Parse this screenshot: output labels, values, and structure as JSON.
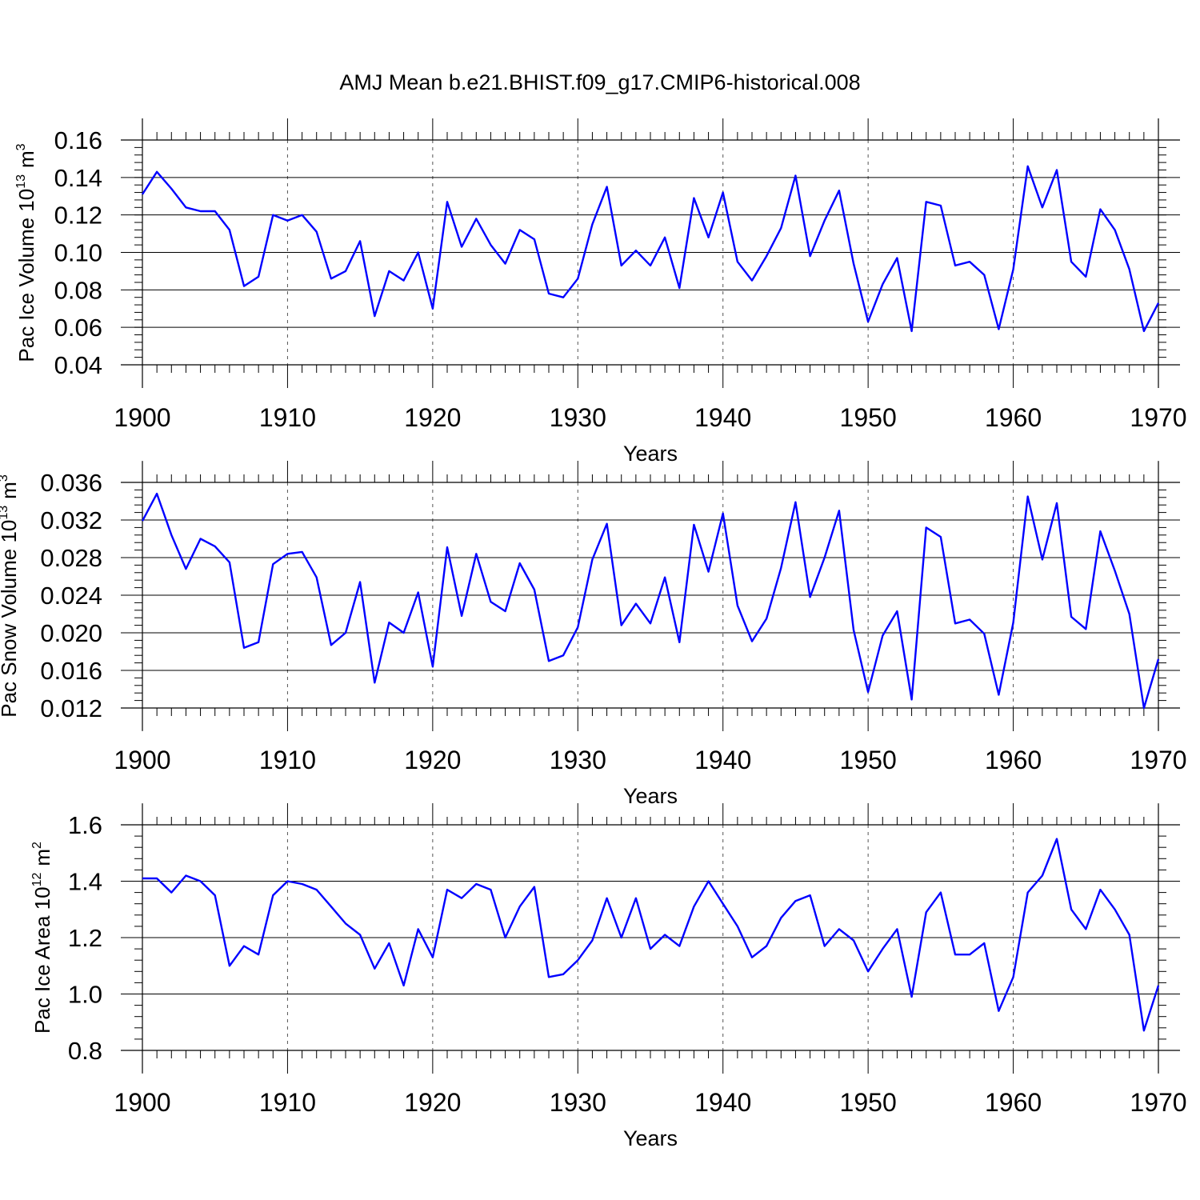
{
  "figure_title": "AMJ Mean b.e21.BHIST.f09_g17.CMIP6-historical.008",
  "chart_data": [
    {
      "type": "line",
      "title": "AMJ Mean b.e21.BHIST.f09_g17.CMIP6-historical.008",
      "xlabel": "Years",
      "ylabel": "Pac Ice Volume 10",
      "ylabel_exp": "13",
      "ylabel_unit": "m",
      "ylabel_unit_exp": "3",
      "xlim": [
        1900,
        1970
      ],
      "ylim": [
        0.04,
        0.16
      ],
      "xticks": [
        1900,
        1910,
        1920,
        1930,
        1940,
        1950,
        1960,
        1970
      ],
      "xtick_labels": [
        "1900",
        "1910",
        "1920",
        "1930",
        "1940",
        "1950",
        "1960",
        "1970"
      ],
      "yticks": [
        0.04,
        0.06,
        0.08,
        0.1,
        0.12,
        0.14,
        0.16
      ],
      "ytick_labels": [
        "0.04",
        "0.06",
        "0.08",
        "0.10",
        "0.12",
        "0.14",
        "0.16"
      ],
      "grid": "vertical-dashed-at-major",
      "line_color": "#0000ff",
      "x_start": 1900,
      "values": [
        0.131,
        0.143,
        0.134,
        0.124,
        0.122,
        0.122,
        0.112,
        0.082,
        0.087,
        0.12,
        0.117,
        0.12,
        0.111,
        0.086,
        0.09,
        0.106,
        0.066,
        0.09,
        0.085,
        0.1,
        0.07,
        0.127,
        0.103,
        0.118,
        0.104,
        0.094,
        0.112,
        0.107,
        0.078,
        0.076,
        0.086,
        0.115,
        0.135,
        0.093,
        0.101,
        0.093,
        0.108,
        0.081,
        0.129,
        0.108,
        0.132,
        0.095,
        0.085,
        0.098,
        0.113,
        0.141,
        0.098,
        0.117,
        0.133,
        0.094,
        0.063,
        0.083,
        0.097,
        0.058,
        0.127,
        0.125,
        0.093,
        0.095,
        0.088,
        0.059,
        0.091,
        0.146,
        0.124,
        0.144,
        0.095,
        0.087,
        0.123,
        0.112,
        0.091,
        0.058,
        0.073
      ]
    },
    {
      "type": "line",
      "xlabel": "Years",
      "ylabel": "Pac Snow Volume 10",
      "ylabel_exp": "13",
      "ylabel_unit": "m",
      "ylabel_unit_exp": "3",
      "xlim": [
        1900,
        1970
      ],
      "ylim": [
        0.012,
        0.036
      ],
      "xticks": [
        1900,
        1910,
        1920,
        1930,
        1940,
        1950,
        1960,
        1970
      ],
      "xtick_labels": [
        "1900",
        "1910",
        "1920",
        "1930",
        "1940",
        "1950",
        "1960",
        "1970"
      ],
      "yticks": [
        0.012,
        0.016,
        0.02,
        0.024,
        0.028,
        0.032,
        0.036
      ],
      "ytick_labels": [
        "0.012",
        "0.016",
        "0.020",
        "0.024",
        "0.028",
        "0.032",
        "0.036"
      ],
      "grid": "vertical-dashed-at-major",
      "line_color": "#0000ff",
      "x_start": 1900,
      "values": [
        0.0319,
        0.0348,
        0.0304,
        0.0268,
        0.03,
        0.0292,
        0.0275,
        0.0184,
        0.019,
        0.0273,
        0.0284,
        0.0286,
        0.0259,
        0.0187,
        0.02,
        0.0254,
        0.0147,
        0.0211,
        0.02,
        0.0243,
        0.0164,
        0.0291,
        0.0218,
        0.0284,
        0.0233,
        0.0223,
        0.0274,
        0.0246,
        0.017,
        0.0176,
        0.0206,
        0.0278,
        0.0316,
        0.0208,
        0.0231,
        0.021,
        0.0259,
        0.019,
        0.0315,
        0.0265,
        0.0327,
        0.0229,
        0.0191,
        0.0215,
        0.0269,
        0.0339,
        0.0238,
        0.028,
        0.033,
        0.0203,
        0.0137,
        0.0197,
        0.0223,
        0.0129,
        0.0312,
        0.0302,
        0.021,
        0.0214,
        0.0199,
        0.0134,
        0.0211,
        0.0345,
        0.0278,
        0.0338,
        0.0217,
        0.0204,
        0.0308,
        0.0266,
        0.022,
        0.012,
        0.0172
      ]
    },
    {
      "type": "line",
      "xlabel": "Years",
      "ylabel": "Pac Ice Area 10",
      "ylabel_exp": "12",
      "ylabel_unit": "m",
      "ylabel_unit_exp": "2",
      "xlim": [
        1900,
        1970
      ],
      "ylim": [
        0.8,
        1.6
      ],
      "xticks": [
        1900,
        1910,
        1920,
        1930,
        1940,
        1950,
        1960,
        1970
      ],
      "xtick_labels": [
        "1900",
        "1910",
        "1920",
        "1930",
        "1940",
        "1950",
        "1960",
        "1970"
      ],
      "yticks": [
        0.8,
        1.0,
        1.2,
        1.4,
        1.6
      ],
      "ytick_labels": [
        "0.8",
        "1.0",
        "1.2",
        "1.4",
        "1.6"
      ],
      "grid": "vertical-dashed-at-major",
      "line_color": "#0000ff",
      "x_start": 1900,
      "values": [
        1.41,
        1.41,
        1.36,
        1.42,
        1.4,
        1.35,
        1.1,
        1.17,
        1.14,
        1.35,
        1.4,
        1.39,
        1.37,
        1.31,
        1.25,
        1.21,
        1.09,
        1.18,
        1.03,
        1.23,
        1.13,
        1.37,
        1.34,
        1.39,
        1.37,
        1.2,
        1.31,
        1.38,
        1.06,
        1.07,
        1.12,
        1.19,
        1.34,
        1.2,
        1.34,
        1.16,
        1.21,
        1.17,
        1.31,
        1.4,
        1.32,
        1.24,
        1.13,
        1.17,
        1.27,
        1.33,
        1.35,
        1.17,
        1.23,
        1.19,
        1.08,
        1.16,
        1.23,
        0.99,
        1.29,
        1.36,
        1.14,
        1.14,
        1.18,
        0.94,
        1.06,
        1.36,
        1.42,
        1.55,
        1.3,
        1.23,
        1.37,
        1.3,
        1.21,
        0.87,
        1.03
      ]
    }
  ]
}
